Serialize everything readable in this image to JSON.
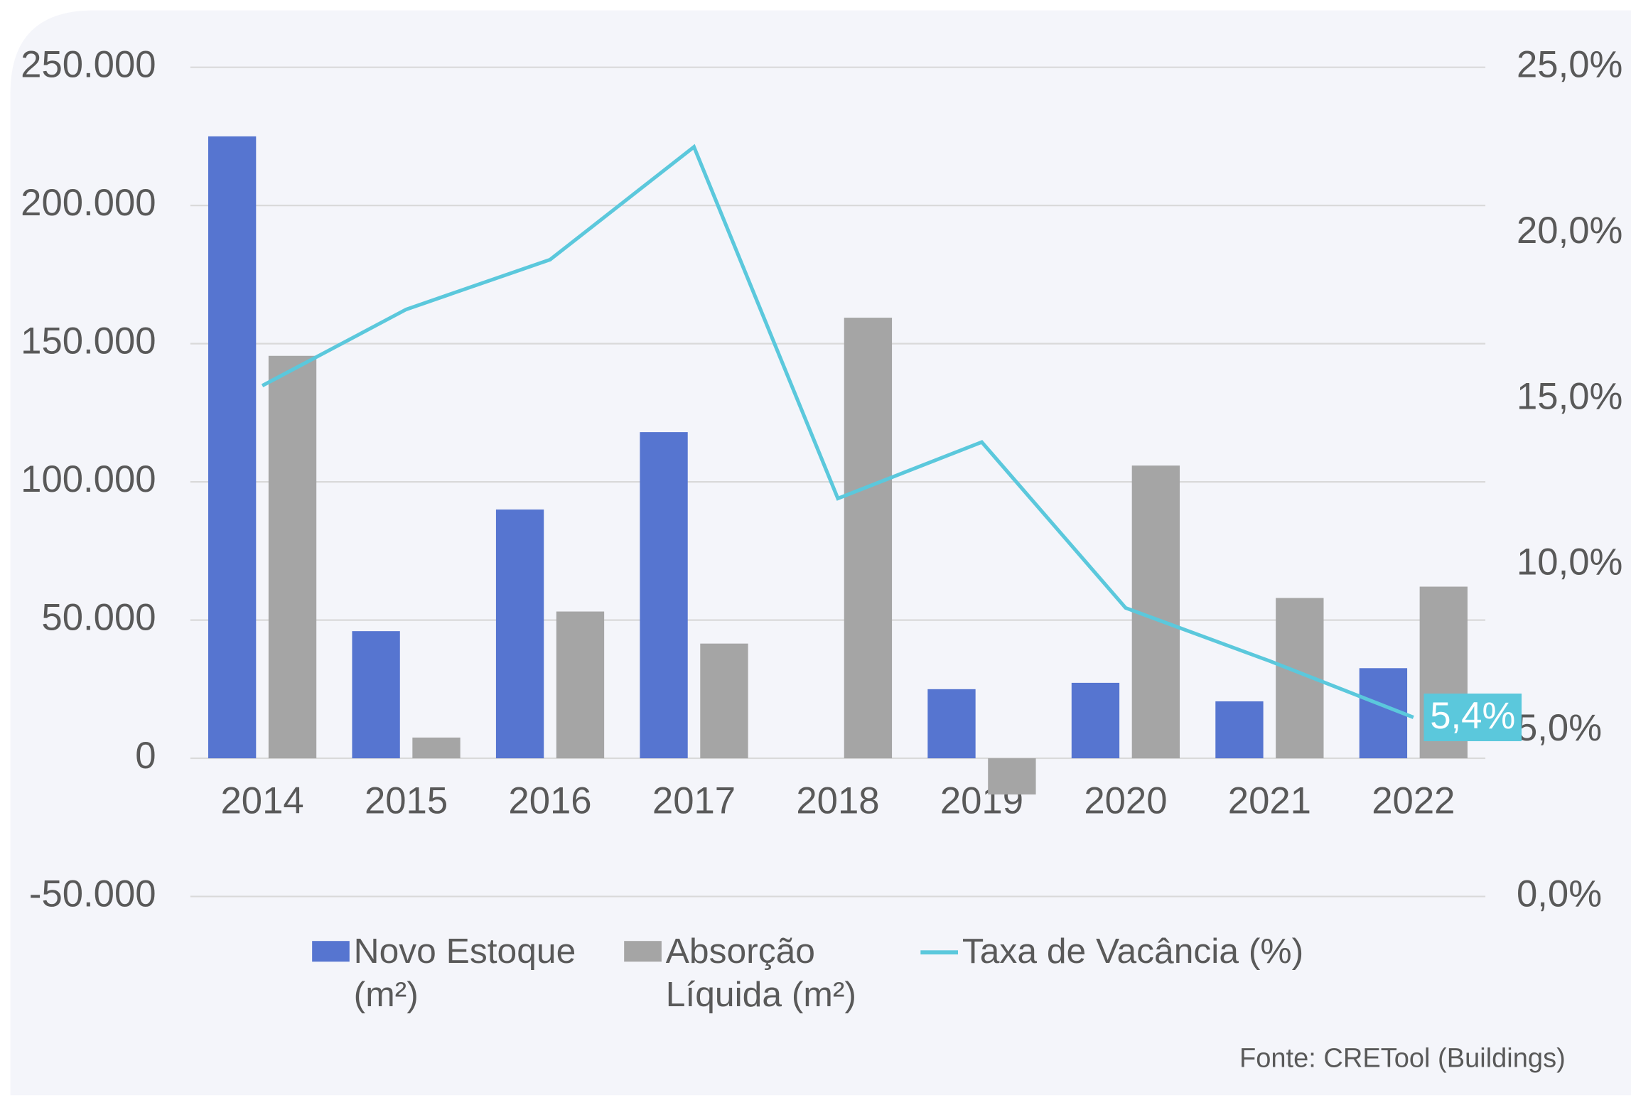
{
  "chart_data": {
    "type": "bar_line",
    "categories": [
      "2014",
      "2015",
      "2016",
      "2017",
      "2018",
      "2019",
      "2020",
      "2021",
      "2022"
    ],
    "series": [
      {
        "name": "Novo Estoque (m²)",
        "type": "bar",
        "color": "#5675d0",
        "values": [
          225000,
          46000,
          90000,
          118000,
          0,
          25000,
          27300,
          20600,
          32600
        ]
      },
      {
        "name": "Absorção Líquida (m²)",
        "type": "bar",
        "color": "#a5a5a5",
        "values": [
          145600,
          7500,
          53100,
          41500,
          159400,
          -13100,
          105900,
          58000,
          62100
        ]
      },
      {
        "name": "Taxa de Vacância (%)",
        "type": "line",
        "axis": "y2",
        "color": "#5bc8dc",
        "values": [
          15.4,
          17.7,
          19.2,
          22.6,
          12.0,
          13.7,
          8.7,
          7.1,
          5.4
        ],
        "value_labels": [
          null,
          null,
          null,
          null,
          null,
          null,
          null,
          null,
          "5,4%"
        ]
      }
    ],
    "ylim": [
      -50000,
      250000
    ],
    "yticks": [
      {
        "value": -50000,
        "label": "-50.000"
      },
      0,
      {
        "value": 50000,
        "label": "50.000"
      },
      {
        "value": 100000,
        "label": "100.000"
      },
      {
        "value": 150000,
        "label": "150.000"
      },
      {
        "value": 200000,
        "label": "200.000"
      },
      {
        "value": 250000,
        "label": "250.000"
      }
    ],
    "y2lim": [
      0,
      25
    ],
    "y2ticks": [
      {
        "value": 0,
        "label": "0,0%"
      },
      {
        "value": 5,
        "label": "5,0%"
      },
      {
        "value": 10,
        "label": "10,0%"
      },
      {
        "value": 15,
        "label": "15,0%"
      },
      {
        "value": 20,
        "label": "20,0%"
      },
      {
        "value": 25,
        "label": "25,0%"
      }
    ],
    "grid": true,
    "legend": "bottom",
    "source": "Fonte: CRETool (Buildings)"
  }
}
